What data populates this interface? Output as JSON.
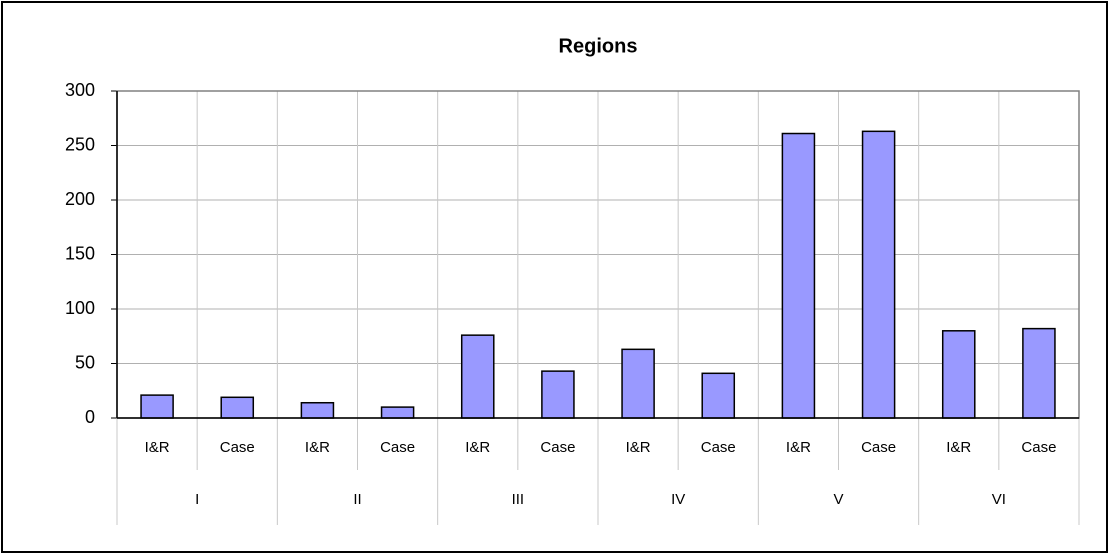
{
  "chart_data": {
    "type": "bar",
    "title": "Regions",
    "categories": [
      "I&R",
      "Case",
      "I&R",
      "Case",
      "I&R",
      "Case",
      "I&R",
      "Case",
      "I&R",
      "Case",
      "I&R",
      "Case"
    ],
    "groups": [
      "I",
      "II",
      "III",
      "IV",
      "V",
      "VI"
    ],
    "values": [
      21,
      19,
      14,
      10,
      76,
      43,
      63,
      41,
      261,
      263,
      80,
      82
    ],
    "color": "#9999ff",
    "ylim": [
      0,
      300
    ],
    "yticks": [
      0,
      50,
      100,
      150,
      200,
      250,
      300
    ],
    "grid": true
  }
}
